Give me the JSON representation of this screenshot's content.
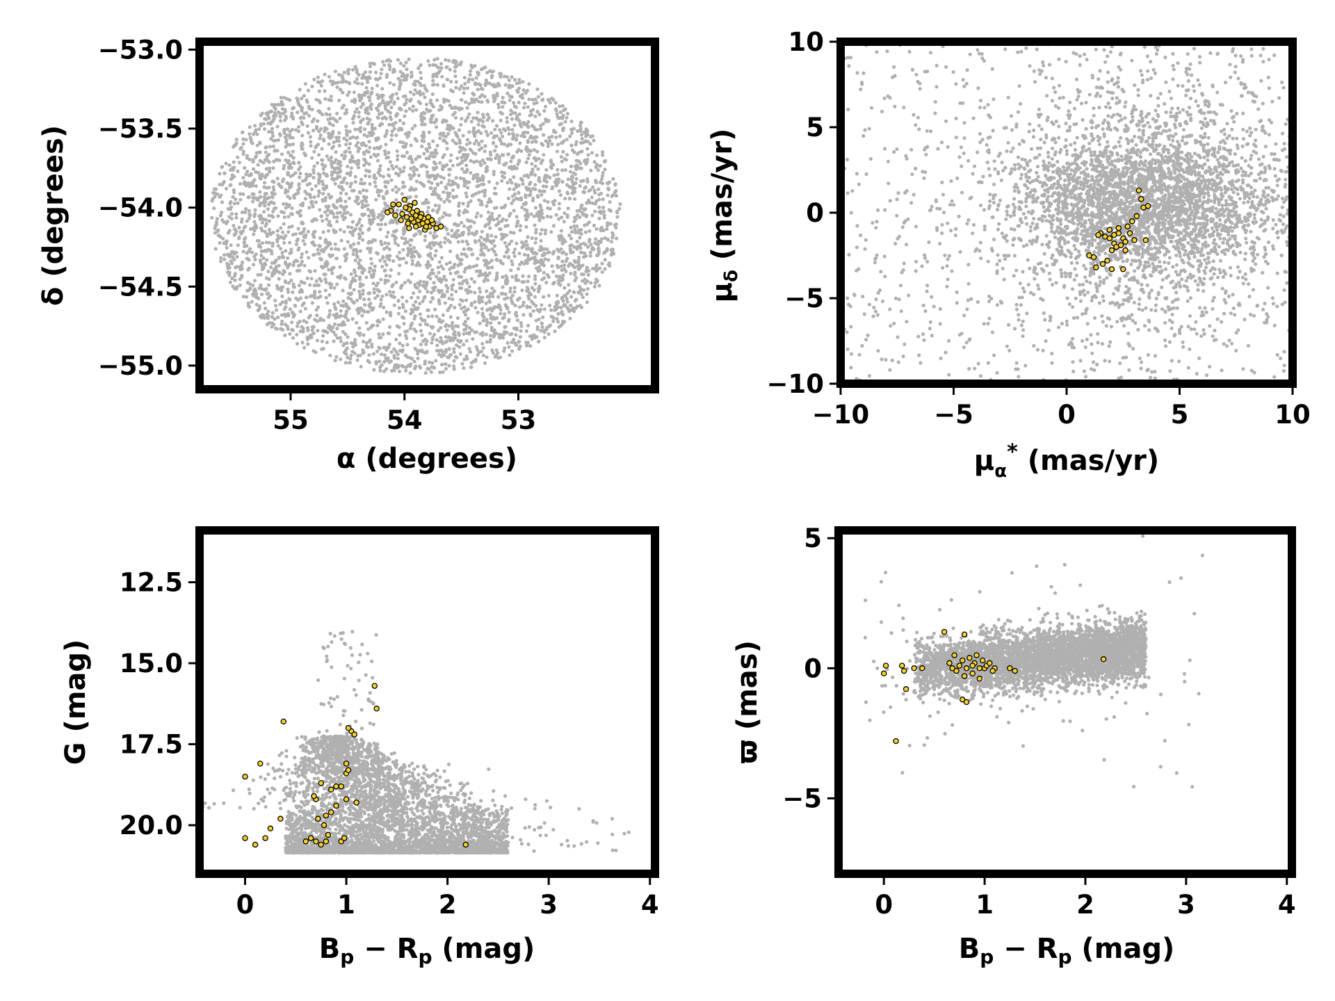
{
  "colors": {
    "background_stars": "#b0b0b0",
    "members_fill": "#f5d033",
    "members_edge": "#000000",
    "frame": "#000000"
  },
  "chart_data": [
    {
      "id": "sky",
      "type": "scatter",
      "xlabel": "α (degrees)",
      "ylabel": "δ (degrees)",
      "xlim": [
        55.8,
        51.8
      ],
      "ylim": [
        -55.15,
        -52.95
      ],
      "xticks": [
        55,
        54,
        53
      ],
      "xtick_labels": [
        "55",
        "54",
        "53"
      ],
      "yticks": [
        -53.0,
        -53.5,
        -54.0,
        -54.5,
        -55.0
      ],
      "ytick_labels": [
        "−53.0",
        "−53.5",
        "−54.0",
        "−54.5",
        "−55.0"
      ],
      "background": {
        "distribution": "uniform-disc",
        "center": [
          53.9,
          -54.05
        ],
        "radius_x": 1.8,
        "radius_y": 1.0,
        "count": 4500,
        "seed": 11
      },
      "members": [
        [
          54.12,
          -54.02
        ],
        [
          54.05,
          -53.98
        ],
        [
          54.0,
          -53.95
        ],
        [
          53.95,
          -53.99
        ],
        [
          54.02,
          -54.04
        ],
        [
          53.98,
          -54.06
        ],
        [
          53.93,
          -54.03
        ],
        [
          53.9,
          -54.05
        ],
        [
          53.88,
          -54.08
        ],
        [
          53.85,
          -54.04
        ],
        [
          53.96,
          -54.01
        ],
        [
          53.92,
          -54.09
        ],
        [
          53.87,
          -54.11
        ],
        [
          53.83,
          -54.07
        ],
        [
          53.8,
          -54.09
        ],
        [
          53.78,
          -54.12
        ],
        [
          53.75,
          -54.1
        ],
        [
          53.72,
          -54.13
        ],
        [
          53.82,
          -54.14
        ],
        [
          53.9,
          -54.12
        ],
        [
          54.08,
          -54.05
        ],
        [
          54.15,
          -54.03
        ],
        [
          53.99,
          -54.0
        ],
        [
          53.94,
          -54.07
        ],
        [
          53.86,
          -54.06
        ],
        [
          53.79,
          -54.06
        ],
        [
          53.76,
          -54.08
        ],
        [
          53.84,
          -54.1
        ],
        [
          53.89,
          -54.02
        ],
        [
          54.03,
          -54.08
        ],
        [
          53.96,
          -54.13
        ],
        [
          53.68,
          -54.12
        ],
        [
          54.1,
          -53.98
        ],
        [
          53.91,
          -53.97
        ],
        [
          53.81,
          -54.12
        ],
        [
          53.97,
          -54.1
        ]
      ]
    },
    {
      "id": "pm",
      "type": "scatter",
      "xlabel": "μα* (mas/yr)",
      "ylabel": "μδ (mas/yr)",
      "xlim": [
        -10,
        10
      ],
      "ylim": [
        -10,
        10
      ],
      "xticks": [
        -10,
        -5,
        0,
        5,
        10
      ],
      "xtick_labels": [
        "−10",
        "−5",
        "0",
        "5",
        "10"
      ],
      "yticks": [
        10,
        5,
        0,
        -5,
        -10
      ],
      "ytick_labels": [
        "10",
        "5",
        "0",
        "−5",
        "−10"
      ],
      "background": {
        "distribution": "gaussian-plus-uniform",
        "center": [
          3.5,
          0.5
        ],
        "sigma": [
          3.0,
          3.2
        ],
        "count": 3600,
        "uniform_count": 900,
        "uniform_x": [
          -10,
          10
        ],
        "uniform_y": [
          -10,
          10
        ],
        "seed": 23
      },
      "members": [
        [
          1.0,
          -2.5
        ],
        [
          1.2,
          -2.6
        ],
        [
          1.5,
          -1.2
        ],
        [
          1.7,
          -1.4
        ],
        [
          1.9,
          -1.0
        ],
        [
          2.1,
          -1.8
        ],
        [
          2.3,
          -1.2
        ],
        [
          2.5,
          -1.5
        ],
        [
          2.7,
          -0.8
        ],
        [
          2.9,
          -0.5
        ],
        [
          3.1,
          -0.2
        ],
        [
          3.3,
          0.8
        ],
        [
          3.4,
          0.3
        ],
        [
          3.6,
          0.4
        ],
        [
          2.0,
          -2.2
        ],
        [
          2.2,
          -2.0
        ],
        [
          2.4,
          -1.9
        ],
        [
          2.6,
          -1.7
        ],
        [
          2.8,
          -1.2
        ],
        [
          1.8,
          -2.8
        ],
        [
          1.6,
          -3.0
        ],
        [
          1.3,
          -3.2
        ],
        [
          2.0,
          -3.3
        ],
        [
          2.5,
          -3.3
        ],
        [
          3.0,
          -1.6
        ],
        [
          3.5,
          -1.6
        ],
        [
          3.2,
          1.3
        ],
        [
          2.3,
          -0.9
        ],
        [
          1.9,
          -1.5
        ],
        [
          2.6,
          -2.2
        ],
        [
          2.1,
          -1.3
        ],
        [
          1.4,
          -1.3
        ]
      ]
    },
    {
      "id": "cmd",
      "type": "scatter",
      "xlabel": "Bp − Rp (mag)",
      "ylabel": "G (mag)",
      "xlim": [
        -0.45,
        4.05
      ],
      "ylim": [
        21.5,
        10.9
      ],
      "xticks": [
        0,
        1,
        2,
        3,
        4
      ],
      "xtick_labels": [
        "0",
        "1",
        "2",
        "3",
        "4"
      ],
      "yticks": [
        20.0,
        17.5,
        15.0,
        12.5
      ],
      "ytick_labels": [
        "20.0",
        "17.5",
        "15.0",
        "12.5"
      ],
      "background": {
        "distribution": "cmd-wedge",
        "count": 4200,
        "seed": 37
      },
      "members": [
        [
          0.0,
          20.4
        ],
        [
          0.1,
          20.6
        ],
        [
          0.2,
          20.4
        ],
        [
          0.25,
          20.1
        ],
        [
          0.35,
          19.8
        ],
        [
          0.6,
          20.5
        ],
        [
          0.65,
          20.4
        ],
        [
          0.7,
          20.5
        ],
        [
          0.75,
          20.6
        ],
        [
          0.8,
          20.5
        ],
        [
          0.82,
          20.3
        ],
        [
          0.78,
          20.0
        ],
        [
          0.72,
          19.8
        ],
        [
          0.8,
          19.7
        ],
        [
          0.85,
          19.6
        ],
        [
          0.9,
          19.4
        ],
        [
          0.95,
          20.5
        ],
        [
          0.98,
          20.4
        ],
        [
          1.0,
          19.2
        ],
        [
          0.9,
          18.8
        ],
        [
          1.0,
          18.4
        ],
        [
          1.02,
          18.3
        ],
        [
          0.7,
          19.2
        ],
        [
          0.75,
          18.7
        ],
        [
          0.85,
          18.9
        ],
        [
          0.95,
          18.8
        ],
        [
          1.0,
          18.1
        ],
        [
          1.05,
          17.1
        ],
        [
          1.02,
          17.0
        ],
        [
          1.08,
          17.2
        ],
        [
          0.0,
          18.5
        ],
        [
          0.15,
          18.1
        ],
        [
          0.38,
          16.8
        ],
        [
          1.3,
          16.4
        ],
        [
          1.28,
          15.7
        ],
        [
          2.18,
          20.6
        ],
        [
          0.68,
          19.1
        ],
        [
          1.1,
          19.3
        ]
      ]
    },
    {
      "id": "parallax",
      "type": "scatter",
      "xlabel": "Bp − Rp (mag)",
      "ylabel": "ϖ (mas)",
      "xlim": [
        -0.45,
        4.05
      ],
      "ylim": [
        -7.9,
        5.3
      ],
      "xticks": [
        0,
        1,
        2,
        3,
        4
      ],
      "xtick_labels": [
        "0",
        "1",
        "2",
        "3",
        "4"
      ],
      "yticks": [
        5,
        0,
        -5
      ],
      "ytick_labels": [
        "5",
        "0",
        "−5"
      ],
      "background": {
        "distribution": "parallax-band",
        "count": 4200,
        "seed": 53
      },
      "members": [
        [
          0.0,
          -0.2
        ],
        [
          0.02,
          0.1
        ],
        [
          0.18,
          0.1
        ],
        [
          0.2,
          -0.1
        ],
        [
          0.3,
          0.0
        ],
        [
          0.38,
          0.0
        ],
        [
          0.65,
          0.2
        ],
        [
          0.7,
          0.5
        ],
        [
          0.72,
          -0.1
        ],
        [
          0.75,
          0.1
        ],
        [
          0.78,
          0.3
        ],
        [
          0.8,
          -0.3
        ],
        [
          0.82,
          0.0
        ],
        [
          0.85,
          0.4
        ],
        [
          0.88,
          -0.2
        ],
        [
          0.9,
          0.2
        ],
        [
          0.92,
          0.5
        ],
        [
          0.95,
          -0.4
        ],
        [
          0.98,
          0.3
        ],
        [
          1.0,
          0.0
        ],
        [
          1.02,
          0.1
        ],
        [
          1.05,
          0.2
        ],
        [
          1.1,
          0.0
        ],
        [
          1.25,
          0.0
        ],
        [
          1.3,
          -0.1
        ],
        [
          0.6,
          1.4
        ],
        [
          0.8,
          1.3
        ],
        [
          0.78,
          -1.2
        ],
        [
          0.82,
          -1.3
        ],
        [
          0.22,
          -0.8
        ],
        [
          0.12,
          -2.8
        ],
        [
          2.18,
          0.35
        ],
        [
          0.95,
          0.0
        ],
        [
          1.08,
          -0.1
        ],
        [
          0.68,
          0.0
        ],
        [
          0.88,
          0.1
        ]
      ]
    }
  ]
}
